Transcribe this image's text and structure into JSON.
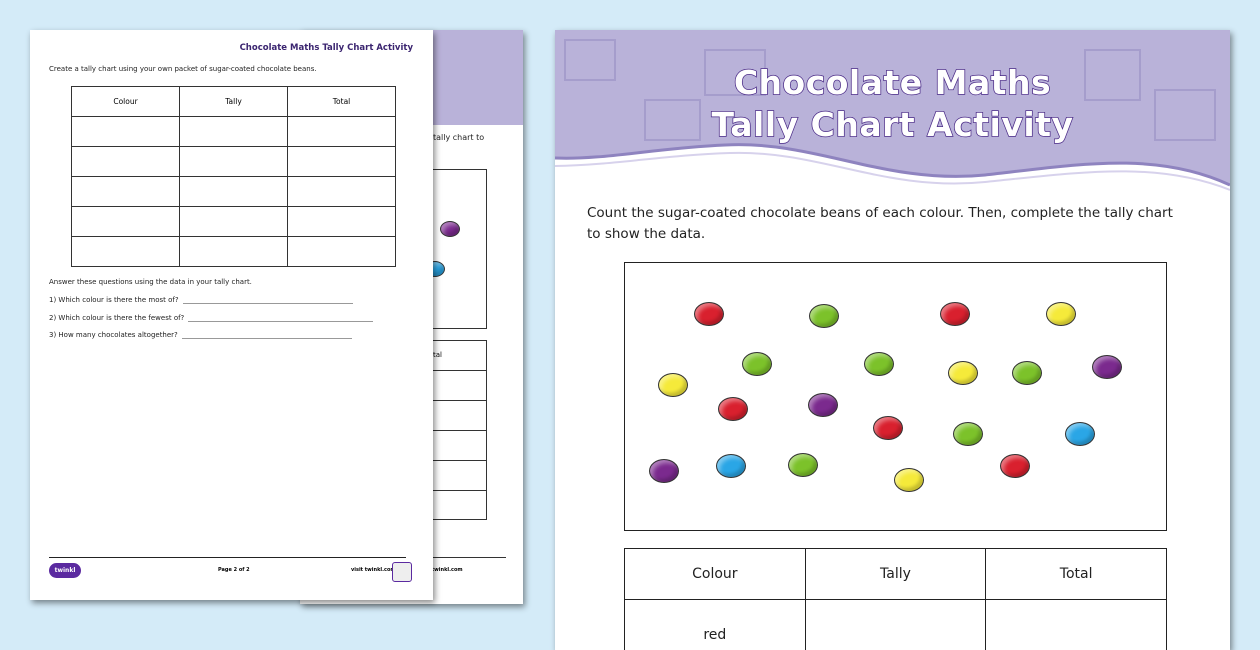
{
  "worksheet_back": {
    "partial_text": "tally chart to",
    "table_header_partial": "tal",
    "footer_visit": "visit twinkl.com"
  },
  "worksheet_page2": {
    "header": "Chocolate Maths Tally Chart Activity",
    "instruction": "Create a tally chart using your own packet of sugar-coated chocolate beans.",
    "table_headers": [
      "Colour",
      "Tally",
      "Total"
    ],
    "questions_intro": "Answer these questions using the data in your tally chart.",
    "questions": [
      "1) Which colour is there the most of?",
      "2) Which colour is there the fewest of?",
      "3) How many chocolates altogether?"
    ],
    "footer": {
      "logo": "twinkl",
      "page": "Page 2 of 2",
      "visit": "visit twinkl.com"
    }
  },
  "worksheet_main": {
    "title_line1": "Chocolate Maths",
    "title_line2": "Tally Chart Activity",
    "instruction": "Count the sugar-coated chocolate beans of each colour. Then, complete the tally chart to show the data.",
    "beans": [
      "red",
      "green",
      "red",
      "yellow",
      "yellow",
      "green",
      "green",
      "yellow",
      "green",
      "purple",
      "red",
      "purple",
      "red",
      "green",
      "blue",
      "purple",
      "blue",
      "green",
      "yellow",
      "red"
    ],
    "table_headers": [
      "Colour",
      "Tally",
      "Total"
    ],
    "first_row_colour": "red"
  },
  "colors": {
    "background": "#d4ebf8",
    "header_purple": "#b9b2d9",
    "title_outline": "#4a2a87",
    "red": "#d9202e",
    "green": "#7cc22a",
    "yellow": "#f5ea3a",
    "purple": "#7b2a8e",
    "blue": "#2aa6e6"
  }
}
